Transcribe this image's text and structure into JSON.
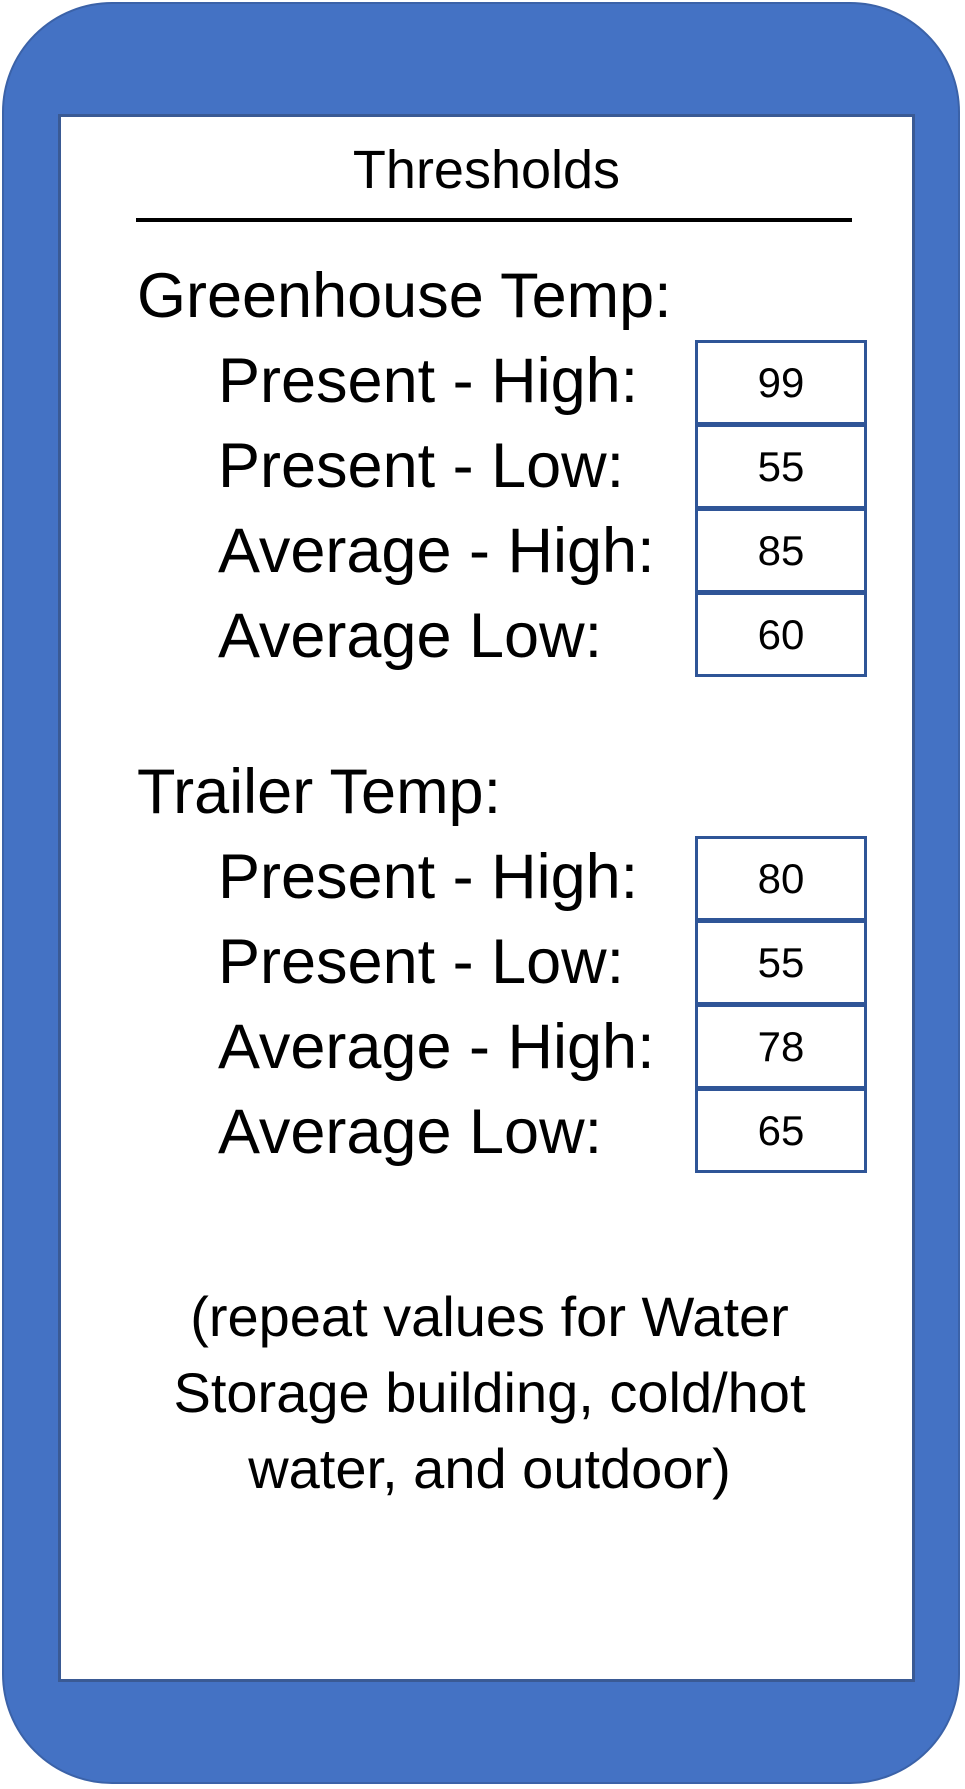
{
  "title": "Thresholds",
  "colors": {
    "frame": "#4472c4",
    "screen_border": "#3a5a94",
    "box_border": "#2f5597",
    "background": "#ffffff",
    "text": "#000000"
  },
  "greenhouse": {
    "heading": "Greenhouse Temp:",
    "rows": [
      {
        "label": "Present - High:",
        "value": "99"
      },
      {
        "label": "Present - Low:",
        "value": "55"
      },
      {
        "label": "Average - High:",
        "value": "85"
      },
      {
        "label": "Average Low:",
        "value": "60"
      }
    ]
  },
  "trailer": {
    "heading": "Trailer Temp:",
    "rows": [
      {
        "label": "Present - High:",
        "value": "80"
      },
      {
        "label": "Present - Low:",
        "value": "55"
      },
      {
        "label": "Average - High:",
        "value": "78"
      },
      {
        "label": "Average Low:",
        "value": "65"
      }
    ]
  },
  "footnote": "(repeat values for Water Storage building, cold/hot water, and outdoor)"
}
